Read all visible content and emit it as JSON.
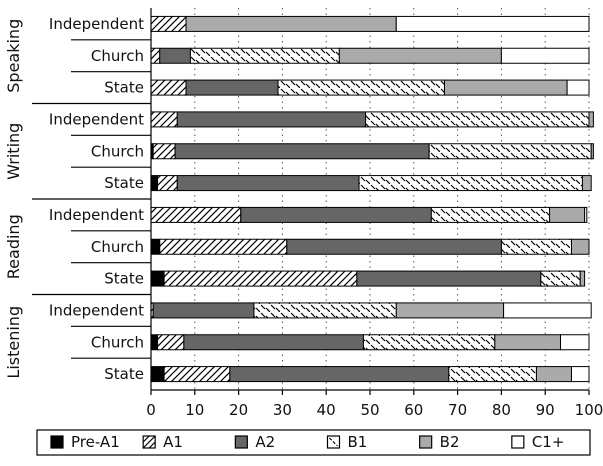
{
  "chart_data": {
    "type": "bar",
    "orientation": "horizontal",
    "stacked": true,
    "title": "",
    "xlabel": "",
    "ylabel": "",
    "xlim": [
      0,
      100
    ],
    "xticks": [
      0,
      10,
      20,
      30,
      40,
      50,
      60,
      70,
      80,
      90,
      100
    ],
    "grid": "dotted vertical lines at every 10",
    "legend_position": "bottom",
    "groups": [
      {
        "name": "Speaking",
        "rows": [
          "Independent",
          "Church",
          "State"
        ]
      },
      {
        "name": "Writing",
        "rows": [
          "Independent",
          "Church",
          "State"
        ]
      },
      {
        "name": "Reading",
        "rows": [
          "Independent",
          "Church",
          "State"
        ]
      },
      {
        "name": "Listening",
        "rows": [
          "Independent",
          "Church",
          "State"
        ]
      }
    ],
    "categories": [
      "Independent",
      "Church",
      "State",
      "Independent",
      "Church",
      "State",
      "Independent",
      "Church",
      "State",
      "Independent",
      "Church",
      "State"
    ],
    "series": [
      {
        "name": "Pre-A1",
        "color": "#000000",
        "pattern": "solid",
        "values": [
          0,
          0,
          0,
          0,
          0.5,
          1.5,
          0,
          2,
          3,
          0,
          1.5,
          3
        ]
      },
      {
        "name": "A1",
        "color": "#ffffff",
        "pattern": "diagonal-hatch",
        "values": [
          8,
          2,
          8,
          6,
          5,
          4.5,
          20.5,
          29,
          44,
          0.5,
          6,
          15
        ]
      },
      {
        "name": "A2",
        "color": "#666666",
        "pattern": "solid",
        "values": [
          0,
          7,
          21,
          43,
          58,
          41.5,
          43.5,
          49,
          42,
          23,
          41,
          50
        ]
      },
      {
        "name": "B1",
        "color": "#ffffff",
        "pattern": "dash-hatch",
        "values": [
          0,
          34,
          38,
          51,
          37,
          51,
          27,
          16,
          9,
          32.5,
          30,
          20
        ]
      },
      {
        "name": "B2",
        "color": "#aaaaaa",
        "pattern": "solid",
        "values": [
          48,
          37,
          28,
          1,
          0.5,
          2,
          8,
          4,
          1,
          24.5,
          15,
          8
        ]
      },
      {
        "name": "C1+",
        "color": "#ffffff",
        "pattern": "solid",
        "values": [
          44,
          20,
          5,
          0,
          0,
          0,
          0.5,
          0,
          0,
          20,
          6.5,
          4
        ]
      }
    ]
  }
}
